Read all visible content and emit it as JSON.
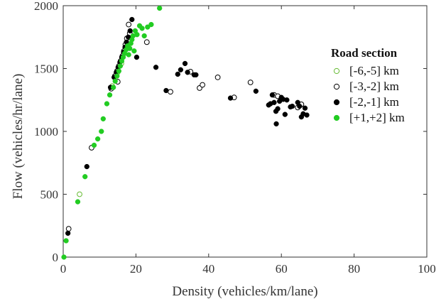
{
  "chart_data": {
    "type": "scatter",
    "title": "",
    "xlabel": "Density (vehicles/km/lane)",
    "ylabel": "Flow (vehicles/hr/lane)",
    "xlim": [
      0,
      100
    ],
    "ylim": [
      0,
      2000
    ],
    "x_ticks": [
      "0",
      "20",
      "40",
      "60",
      "80",
      "100"
    ],
    "y_ticks": [
      "0",
      "500",
      "1000",
      "1500",
      "2000"
    ],
    "grid": false,
    "legend": {
      "title": "Road section",
      "placement": "right-middle",
      "entries": [
        "[-6,-5] km",
        "[-3,-2] km",
        "[-2,-1] km",
        "[+1,+2] km"
      ]
    },
    "series": [
      {
        "name": "[-6,-5] km",
        "marker": "open-circle",
        "color": "#66bb33",
        "points": [
          [
            4.5,
            500
          ],
          [
            13.5,
            1360
          ],
          [
            15,
            1470
          ],
          [
            16,
            1540
          ]
        ]
      },
      {
        "name": "[-3,-2] km",
        "marker": "open-circle",
        "color": "#000000",
        "points": [
          [
            1.5,
            225
          ],
          [
            7.8,
            870
          ],
          [
            13.2,
            1340
          ],
          [
            14.2,
            1440
          ],
          [
            14.8,
            1480
          ],
          [
            15.3,
            1520
          ],
          [
            15.8,
            1560
          ],
          [
            16.3,
            1600
          ],
          [
            16.7,
            1640
          ],
          [
            17.1,
            1690
          ],
          [
            17.5,
            1740
          ],
          [
            18.3,
            1780
          ],
          [
            18.0,
            1850
          ],
          [
            15.0,
            1395
          ],
          [
            23.0,
            1710
          ],
          [
            29.5,
            1315
          ],
          [
            35.0,
            1475
          ],
          [
            37.5,
            1345
          ],
          [
            38.3,
            1370
          ],
          [
            42.5,
            1430
          ],
          [
            47.0,
            1270
          ],
          [
            51.5,
            1390
          ],
          [
            58.0,
            1290
          ],
          [
            59.0,
            1280
          ],
          [
            64.5,
            1190
          ],
          [
            65.5,
            1215
          ]
        ]
      },
      {
        "name": "[-2,-1] km",
        "marker": "filled-circle",
        "color": "#000000",
        "points": [
          [
            1.3,
            190
          ],
          [
            6.5,
            720
          ],
          [
            13.0,
            1350
          ],
          [
            14.0,
            1430
          ],
          [
            14.6,
            1470
          ],
          [
            15.1,
            1510
          ],
          [
            15.6,
            1550
          ],
          [
            16.1,
            1590
          ],
          [
            16.6,
            1630
          ],
          [
            17.0,
            1670
          ],
          [
            17.4,
            1710
          ],
          [
            17.9,
            1750
          ],
          [
            18.4,
            1800
          ],
          [
            18.9,
            1890
          ],
          [
            20.2,
            1590
          ],
          [
            25.5,
            1510
          ],
          [
            28.3,
            1325
          ],
          [
            31.5,
            1455
          ],
          [
            32.3,
            1490
          ],
          [
            33.5,
            1540
          ],
          [
            34.2,
            1470
          ],
          [
            36.0,
            1450
          ],
          [
            36.5,
            1450
          ],
          [
            46.0,
            1265
          ],
          [
            53.0,
            1320
          ],
          [
            56.5,
            1210
          ],
          [
            57.0,
            1220
          ],
          [
            57.5,
            1290
          ],
          [
            58.0,
            1230
          ],
          [
            58.5,
            1160
          ],
          [
            58.6,
            1060
          ],
          [
            59.0,
            1180
          ],
          [
            59.5,
            1240
          ],
          [
            60.0,
            1270
          ],
          [
            60.5,
            1255
          ],
          [
            61.0,
            1135
          ],
          [
            61.5,
            1250
          ],
          [
            62.5,
            1195
          ],
          [
            63.0,
            1200
          ],
          [
            64.5,
            1230
          ],
          [
            65.0,
            1200
          ],
          [
            65.5,
            1115
          ],
          [
            66.0,
            1140
          ],
          [
            66.5,
            1185
          ],
          [
            67.0,
            1130
          ]
        ]
      },
      {
        "name": "[+1,+2] km",
        "marker": "filled-circle",
        "color": "#22cc22",
        "points": [
          [
            0.2,
            0
          ],
          [
            0.8,
            130
          ],
          [
            4.0,
            440
          ],
          [
            6.0,
            640
          ],
          [
            8.5,
            890
          ],
          [
            9.5,
            940
          ],
          [
            10.5,
            1000
          ],
          [
            11.0,
            1100
          ],
          [
            12.0,
            1220
          ],
          [
            12.8,
            1290
          ],
          [
            13.8,
            1350
          ],
          [
            14.3,
            1400
          ],
          [
            14.8,
            1440
          ],
          [
            15.3,
            1480
          ],
          [
            15.7,
            1520
          ],
          [
            16.1,
            1560
          ],
          [
            16.5,
            1590
          ],
          [
            16.9,
            1620
          ],
          [
            17.3,
            1650
          ],
          [
            17.7,
            1680
          ],
          [
            18.0,
            1610
          ],
          [
            18.3,
            1660
          ],
          [
            18.6,
            1700
          ],
          [
            18.9,
            1730
          ],
          [
            19.2,
            1760
          ],
          [
            19.5,
            1640
          ],
          [
            19.8,
            1800
          ],
          [
            20.3,
            1770
          ],
          [
            21.0,
            1840
          ],
          [
            21.7,
            1820
          ],
          [
            22.3,
            1760
          ],
          [
            23.2,
            1830
          ],
          [
            24.2,
            1850
          ],
          [
            26.5,
            1980
          ]
        ]
      }
    ]
  }
}
